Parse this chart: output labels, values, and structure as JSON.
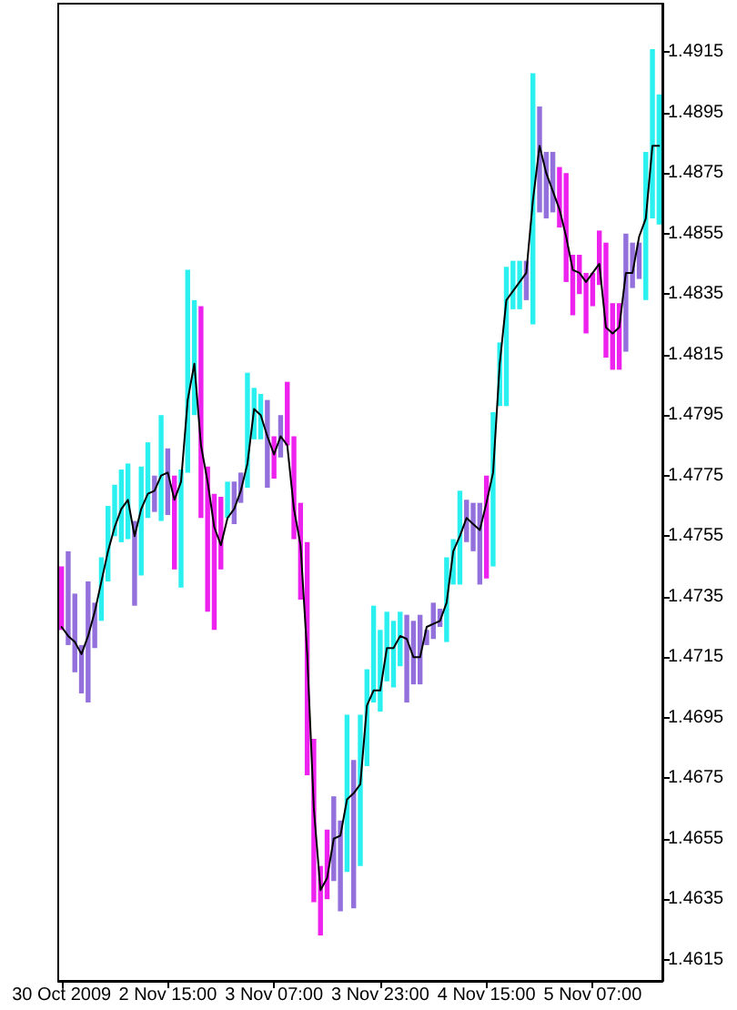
{
  "chart_data": {
    "type": "bar",
    "categories": [
      "30 Oct 2009",
      null,
      null,
      null,
      null,
      null,
      null,
      null,
      null,
      null,
      null,
      null,
      null,
      null,
      null,
      null,
      "2 Nov 15:00",
      null,
      null,
      null,
      null,
      null,
      null,
      null,
      null,
      null,
      null,
      null,
      null,
      null,
      null,
      null,
      "3 Nov 07:00",
      null,
      null,
      null,
      null,
      null,
      null,
      null,
      null,
      null,
      null,
      null,
      null,
      null,
      null,
      null,
      "3 Nov 23:00",
      null,
      null,
      null,
      null,
      null,
      null,
      null,
      null,
      null,
      null,
      null,
      null,
      null,
      null,
      null,
      "4 Nov 15:00",
      null,
      null,
      null,
      null,
      null,
      null,
      null,
      null,
      null,
      null,
      null,
      null,
      null,
      null,
      null,
      "5 Nov 07:00",
      null,
      null,
      null,
      null,
      null,
      null,
      null,
      null,
      null,
      null
    ],
    "series": [
      {
        "colors": [
          "#ee22ee",
          "#9370db",
          "#9370db",
          "#9370db",
          "#9370db",
          "#9370db",
          "#2af0f0",
          "#2af0f0",
          "#2af0f0",
          "#2af0f0",
          "#2af0f0",
          "#9370db",
          "#2af0f0",
          "#2af0f0",
          "#9370db",
          "#2af0f0",
          "#9370db",
          "#ee22ee",
          "#2af0f0",
          "#2af0f0",
          "#2af0f0",
          "#ee22ee",
          "#ee22ee",
          "#ee22ee",
          "#ee22ee",
          "#2af0f0",
          "#9370db",
          "#9370db",
          "#2af0f0",
          "#2af0f0",
          "#2af0f0",
          "#9370db",
          "#ee22ee",
          "#9370db",
          "#ee22ee",
          "#ee22ee",
          "#ee22ee",
          "#ee22ee",
          "#ee22ee",
          "#ee22ee",
          "#ee22ee",
          "#9370db",
          "#9370db",
          "#2af0f0",
          "#9370db",
          "#2af0f0",
          "#2af0f0",
          "#2af0f0",
          "#2af0f0",
          "#2af0f0",
          "#2af0f0",
          "#2af0f0",
          "#9370db",
          "#9370db",
          "#9370db",
          "#9370db",
          "#9370db",
          "#9370db",
          "#2af0f0",
          "#2af0f0",
          "#2af0f0",
          "#9370db",
          "#9370db",
          "#9370db",
          "#ee22ee",
          "#2af0f0",
          "#2af0f0",
          "#2af0f0",
          "#2af0f0",
          "#2af0f0",
          "#9370db",
          "#2af0f0",
          "#9370db",
          "#9370db",
          "#9370db",
          "#ee22ee",
          "#ee22ee",
          "#ee22ee",
          "#ee22ee",
          "#ee22ee",
          "#ee22ee",
          "#ee22ee",
          "#ee22ee",
          "#ee22ee",
          "#ee22ee",
          "#9370db",
          "#9370db",
          "#9370db",
          "#2af0f0",
          "#2af0f0",
          "#2af0f0"
        ],
        "base": [
          1.4724,
          1.4719,
          1.471,
          1.4703,
          1.47,
          1.4718,
          1.4727,
          1.474,
          1.4755,
          1.4753,
          1.4754,
          1.4732,
          1.4742,
          1.4761,
          1.4763,
          1.476,
          1.4762,
          1.4744,
          1.4738,
          1.4776,
          1.4795,
          1.4761,
          1.473,
          1.4724,
          1.4744,
          1.4761,
          1.4759,
          1.4766,
          1.4771,
          1.4787,
          1.4787,
          1.4771,
          1.4774,
          1.4781,
          1.4785,
          1.4754,
          1.4734,
          1.4676,
          1.4634,
          1.4623,
          1.4635,
          1.4641,
          1.4631,
          1.4644,
          1.4632,
          1.4646,
          1.4679,
          1.47,
          1.4697,
          1.4707,
          1.4705,
          1.4712,
          1.47,
          1.4706,
          1.4706,
          1.4719,
          1.4721,
          1.4725,
          1.472,
          1.4739,
          1.4739,
          1.4753,
          1.475,
          1.4739,
          1.4741,
          1.4745,
          1.4798,
          1.4798,
          1.483,
          1.483,
          1.4833,
          1.4825,
          1.4862,
          1.486,
          1.4862,
          1.4857,
          1.4839,
          1.4828,
          1.4835,
          1.4822,
          1.4831,
          1.4838,
          1.4814,
          1.481,
          1.481,
          1.4816,
          1.4837,
          1.484,
          1.4833,
          1.486,
          1.4858
        ],
        "values": [
          0.0021,
          0.0031,
          0.0026,
          0.0016,
          0.004,
          0.0015,
          0.0021,
          0.0025,
          0.0017,
          0.0024,
          0.0025,
          0.0028,
          0.0036,
          0.0025,
          0.0012,
          0.0035,
          0.0022,
          0.0031,
          0.0039,
          0.0067,
          0.0038,
          0.007,
          0.0048,
          0.0045,
          0.0024,
          0.0012,
          0.0014,
          0.001,
          0.0038,
          0.0017,
          0.0015,
          0.0029,
          0.0014,
          0.0014,
          0.0021,
          0.0034,
          0.0032,
          0.0077,
          0.0054,
          0.0023,
          0.0023,
          0.0028,
          0.003,
          0.0052,
          0.0049,
          0.005,
          0.0032,
          0.0032,
          0.0027,
          0.0023,
          0.0022,
          0.0018,
          0.0029,
          0.0021,
          0.0023,
          0.0005,
          0.0012,
          0.0006,
          0.0028,
          0.0015,
          0.0031,
          0.0014,
          0.0016,
          0.0027,
          0.0034,
          0.0051,
          0.0021,
          0.0046,
          0.0016,
          0.0016,
          0.0013,
          0.0083,
          0.0035,
          0.0022,
          0.002,
          0.002,
          0.0036,
          0.002,
          0.0013,
          0.002,
          0.0011,
          0.0018,
          0.0038,
          0.0022,
          0.0022,
          0.0039,
          0.0015,
          0.0012,
          0.0049,
          0.0056,
          0.0043
        ]
      },
      {
        "type": "line",
        "color": "#000000",
        "values": [
          1.4725,
          1.4722,
          1.472,
          1.4716,
          1.4722,
          1.473,
          1.474,
          1.475,
          1.4758,
          1.4764,
          1.4767,
          1.4755,
          1.4764,
          1.4769,
          1.477,
          1.4775,
          1.4776,
          1.4767,
          1.4773,
          1.48,
          1.4812,
          1.4785,
          1.4773,
          1.4758,
          1.4752,
          1.4761,
          1.4764,
          1.477,
          1.4779,
          1.4797,
          1.4795,
          1.4788,
          1.4782,
          1.4788,
          1.4785,
          1.4764,
          1.4752,
          1.4716,
          1.4665,
          1.4638,
          1.4642,
          1.4655,
          1.4656,
          1.4668,
          1.467,
          1.4673,
          1.4699,
          1.4704,
          1.4704,
          1.4718,
          1.4718,
          1.4722,
          1.4721,
          1.4715,
          1.4715,
          1.4725,
          1.4726,
          1.4727,
          1.4733,
          1.475,
          1.4755,
          1.4761,
          1.4759,
          1.4757,
          1.4766,
          1.4776,
          1.4812,
          1.4833,
          1.4836,
          1.4839,
          1.4842,
          1.4866,
          1.4884,
          1.4875,
          1.4869,
          1.4863,
          1.4854,
          1.4843,
          1.4842,
          1.4839,
          1.4842,
          1.4845,
          1.4824,
          1.4822,
          1.4824,
          1.4842,
          1.4842,
          1.4854,
          1.486,
          1.4884,
          1.4884
        ]
      }
    ],
    "ylim": [
      1.4608,
      1.4931
    ],
    "yticks": [
      1.4615,
      1.4635,
      1.4655,
      1.4675,
      1.4695,
      1.4715,
      1.4735,
      1.4755,
      1.4775,
      1.4795,
      1.4815,
      1.4835,
      1.4855,
      1.4875,
      1.4895,
      1.4915
    ]
  }
}
